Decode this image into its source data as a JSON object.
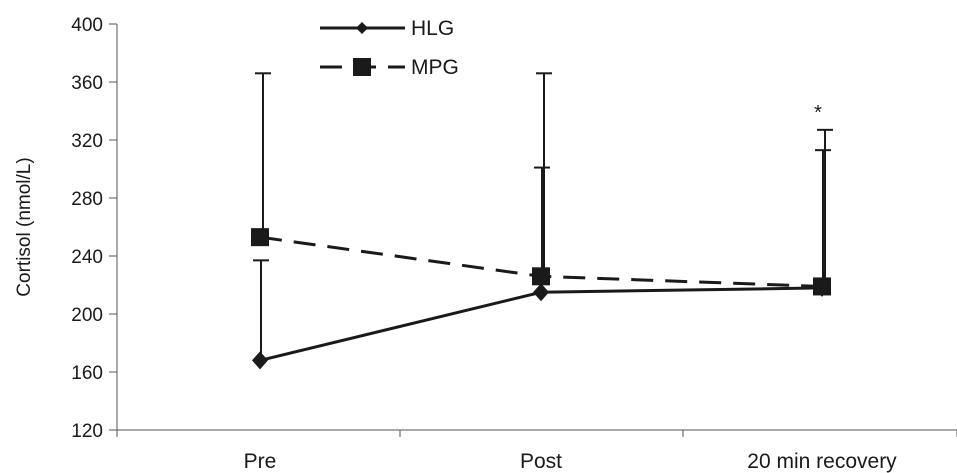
{
  "chart_data": {
    "type": "line",
    "categories": [
      "Pre",
      "Post",
      "20 min recovery"
    ],
    "ylabel": "Cortisol (nmol/L)",
    "xlabel": "",
    "ylim": [
      120,
      400
    ],
    "yticks": [
      120,
      160,
      200,
      240,
      280,
      320,
      360,
      400
    ],
    "legend_position": "top-left",
    "grid": false,
    "series": [
      {
        "name": "HLG",
        "values": [
          168,
          215,
          218
        ],
        "error_upper": [
          237,
          301,
          313
        ],
        "marker": "diamond",
        "line_style": "solid",
        "color": "#1a1a1a"
      },
      {
        "name": "MPG",
        "values": [
          253,
          226,
          219
        ],
        "error_upper": [
          366,
          366,
          327
        ],
        "marker": "square",
        "line_style": "dashed",
        "color": "#1a1a1a"
      }
    ],
    "annotations": [
      {
        "text": "*",
        "category": "20 min recovery",
        "value": 333
      }
    ]
  }
}
